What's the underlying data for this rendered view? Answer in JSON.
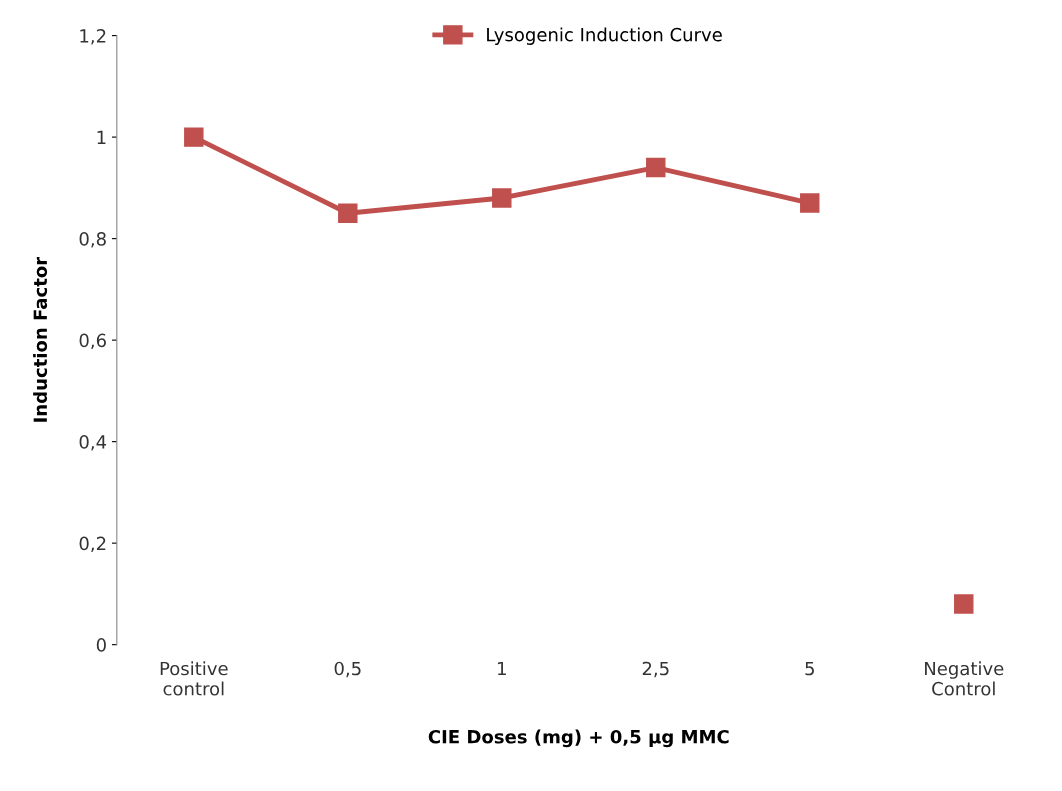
{
  "chart_data": {
    "type": "line",
    "xlabel": "CIE Doses (mg) + 0,5 µg MMC",
    "ylabel": "Induction Factor",
    "categories": [
      "Positive\ncontrol",
      "0,5",
      "1",
      "2,5",
      "5",
      "Negative\nControl"
    ],
    "series": [
      {
        "name": "Lysogenic Induction Curve",
        "color": "#c0504d",
        "values": [
          1.0,
          0.85,
          0.88,
          0.94,
          0.87,
          null
        ]
      },
      {
        "type": "scatter",
        "color": "#c0504d",
        "values": [
          null,
          null,
          null,
          null,
          null,
          0.08
        ]
      }
    ],
    "ylim": [
      0,
      1.2
    ],
    "yticks": [
      {
        "value": 0,
        "label": "0"
      },
      {
        "value": 0.2,
        "label": "0,2"
      },
      {
        "value": 0.4,
        "label": "0,4"
      },
      {
        "value": 0.6,
        "label": "0,6"
      },
      {
        "value": 0.8,
        "label": "0,8"
      },
      {
        "value": 1,
        "label": "1"
      },
      {
        "value": 1.2,
        "label": "1,2"
      }
    ],
    "marker": "square",
    "grid": false,
    "legend": "top"
  }
}
